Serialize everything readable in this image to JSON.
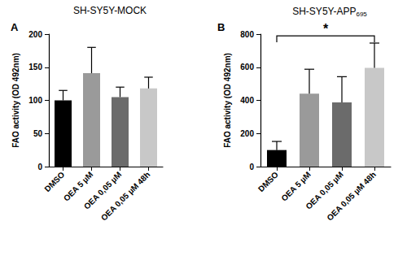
{
  "chart_data": [
    {
      "type": "bar",
      "panel_label": "A",
      "title": {
        "text": "SH-SY5Y-MOCK"
      },
      "y_label": "FAO activity (OD 492nm)",
      "categories": [
        "DMSO",
        "OEA 5 µM",
        "OEA 0,05 µM",
        "OEA 0,05 µM 48h"
      ],
      "values": [
        100,
        141,
        105,
        118
      ],
      "errors": [
        15,
        39,
        15,
        17
      ],
      "colors": [
        "#000000",
        "#9a9a9a",
        "#6b6b6b",
        "#c8c8c8"
      ],
      "ylim": [
        0,
        200
      ],
      "yticks": [
        0,
        50,
        100,
        150,
        200
      ],
      "grid": false
    },
    {
      "type": "bar",
      "panel_label": "B",
      "title": {
        "text": "SH-SY5Y-APP",
        "subscript": "695"
      },
      "y_label": "FAO activity (OD 492nm)",
      "categories": [
        "DMSO",
        "OEA 5 µM",
        "OEA 0,05 µM",
        "OEA 0,05 µM 48h"
      ],
      "values": [
        100,
        440,
        388,
        596
      ],
      "errors": [
        52,
        148,
        155,
        150
      ],
      "colors": [
        "#000000",
        "#9a9a9a",
        "#6b6b6b",
        "#c8c8c8"
      ],
      "ylim": [
        0,
        800
      ],
      "yticks": [
        0,
        200,
        400,
        600,
        800
      ],
      "grid": false,
      "annotations": [
        {
          "text": "*",
          "from": "DMSO",
          "to": "OEA 0,05 µM 48h",
          "y": 790
        }
      ]
    }
  ]
}
